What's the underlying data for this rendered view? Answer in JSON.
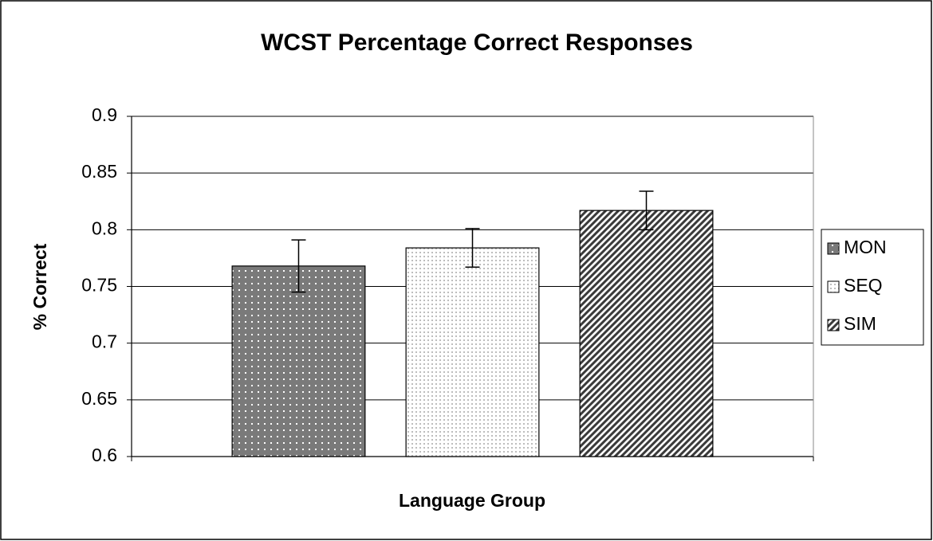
{
  "chart_data": {
    "type": "bar",
    "title": "WCST Percentage Correct Responses",
    "xlabel": "Language Group",
    "ylabel": "% Correct",
    "categories": [
      null
    ],
    "series": [
      {
        "name": "MON",
        "color": "#7a7a7a",
        "values": [
          0.768
        ],
        "errors": [
          0.023
        ]
      },
      {
        "name": "SEQ",
        "color": "#bdbdbd",
        "values": [
          0.784
        ],
        "errors": [
          0.017
        ]
      },
      {
        "name": "SIM",
        "color": "#3a3a3a",
        "values": [
          0.817
        ],
        "errors": [
          0.017
        ]
      }
    ],
    "ylim": [
      0.6,
      0.9
    ],
    "yticks": [
      0.6,
      0.65,
      0.7,
      0.75,
      0.8,
      0.85,
      0.9
    ],
    "grid": true,
    "legend": "right"
  }
}
